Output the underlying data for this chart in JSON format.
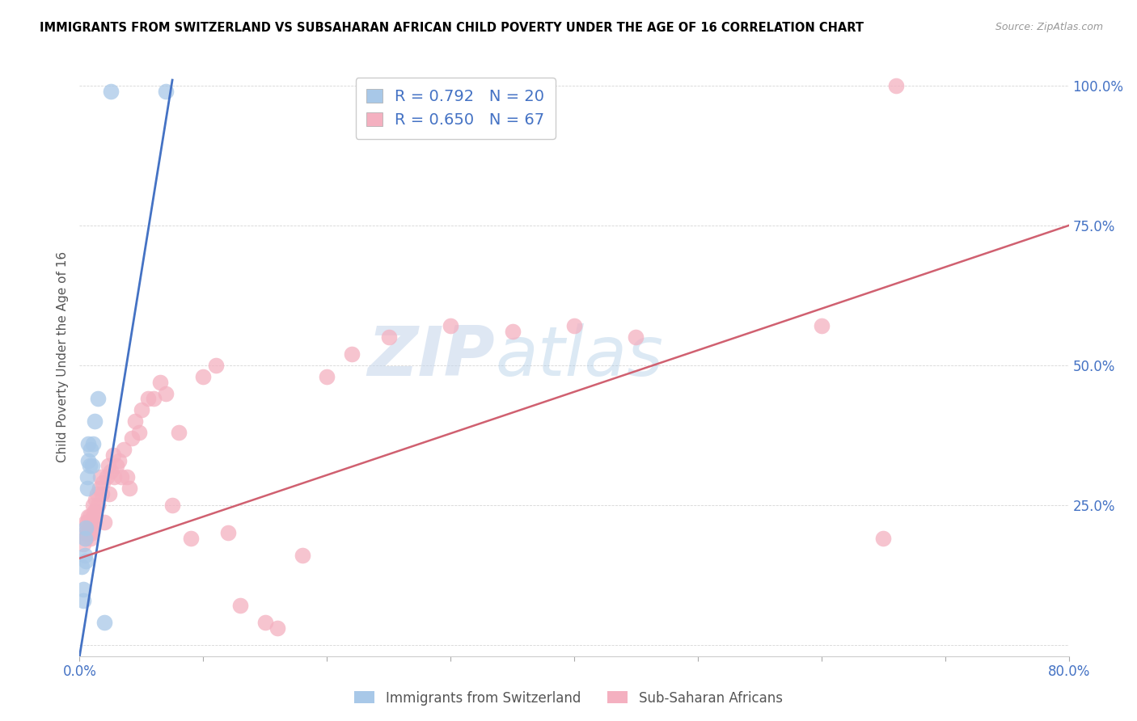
{
  "title": "IMMIGRANTS FROM SWITZERLAND VS SUBSAHARAN AFRICAN CHILD POVERTY UNDER THE AGE OF 16 CORRELATION CHART",
  "source": "Source: ZipAtlas.com",
  "ylabel": "Child Poverty Under the Age of 16",
  "xlim": [
    0.0,
    0.8
  ],
  "ylim": [
    -0.02,
    1.05
  ],
  "blue_R": 0.792,
  "blue_N": 20,
  "pink_R": 0.65,
  "pink_N": 67,
  "blue_color": "#a8c8e8",
  "blue_line_color": "#4472c4",
  "pink_color": "#f4b0c0",
  "pink_line_color": "#d06070",
  "legend_label_blue": "Immigrants from Switzerland",
  "legend_label_pink": "Sub-Saharan Africans",
  "watermark_zip": "ZIP",
  "watermark_atlas": "atlas",
  "blue_scatter_x": [
    0.002,
    0.003,
    0.003,
    0.004,
    0.004,
    0.005,
    0.005,
    0.006,
    0.006,
    0.007,
    0.007,
    0.008,
    0.009,
    0.01,
    0.011,
    0.012,
    0.015,
    0.02,
    0.025,
    0.07
  ],
  "blue_scatter_y": [
    0.14,
    0.1,
    0.08,
    0.16,
    0.19,
    0.21,
    0.15,
    0.28,
    0.3,
    0.33,
    0.36,
    0.32,
    0.35,
    0.32,
    0.36,
    0.4,
    0.44,
    0.04,
    0.99,
    0.99
  ],
  "pink_scatter_x": [
    0.003,
    0.004,
    0.005,
    0.005,
    0.006,
    0.006,
    0.007,
    0.007,
    0.008,
    0.008,
    0.009,
    0.009,
    0.01,
    0.01,
    0.011,
    0.011,
    0.012,
    0.012,
    0.013,
    0.013,
    0.014,
    0.015,
    0.016,
    0.017,
    0.018,
    0.019,
    0.02,
    0.022,
    0.023,
    0.024,
    0.025,
    0.027,
    0.028,
    0.03,
    0.032,
    0.034,
    0.036,
    0.038,
    0.04,
    0.042,
    0.045,
    0.048,
    0.05,
    0.055,
    0.06,
    0.065,
    0.07,
    0.075,
    0.08,
    0.09,
    0.1,
    0.11,
    0.12,
    0.13,
    0.15,
    0.16,
    0.18,
    0.2,
    0.22,
    0.25,
    0.3,
    0.35,
    0.4,
    0.45,
    0.6,
    0.65,
    0.66
  ],
  "pink_scatter_y": [
    0.18,
    0.2,
    0.19,
    0.22,
    0.2,
    0.22,
    0.21,
    0.23,
    0.2,
    0.23,
    0.21,
    0.19,
    0.22,
    0.2,
    0.23,
    0.25,
    0.22,
    0.24,
    0.26,
    0.24,
    0.27,
    0.25,
    0.28,
    0.3,
    0.27,
    0.29,
    0.22,
    0.3,
    0.32,
    0.27,
    0.31,
    0.34,
    0.3,
    0.32,
    0.33,
    0.3,
    0.35,
    0.3,
    0.28,
    0.37,
    0.4,
    0.38,
    0.42,
    0.44,
    0.44,
    0.47,
    0.45,
    0.25,
    0.38,
    0.19,
    0.48,
    0.5,
    0.2,
    0.07,
    0.04,
    0.03,
    0.16,
    0.48,
    0.52,
    0.55,
    0.57,
    0.56,
    0.57,
    0.55,
    0.57,
    0.19,
    1.0
  ],
  "blue_line_x0": 0.0,
  "blue_line_x1": 0.075,
  "blue_line_y0": -0.02,
  "blue_line_y1": 1.01,
  "pink_line_x0": 0.0,
  "pink_line_x1": 0.8,
  "pink_line_y0": 0.155,
  "pink_line_y1": 0.75
}
